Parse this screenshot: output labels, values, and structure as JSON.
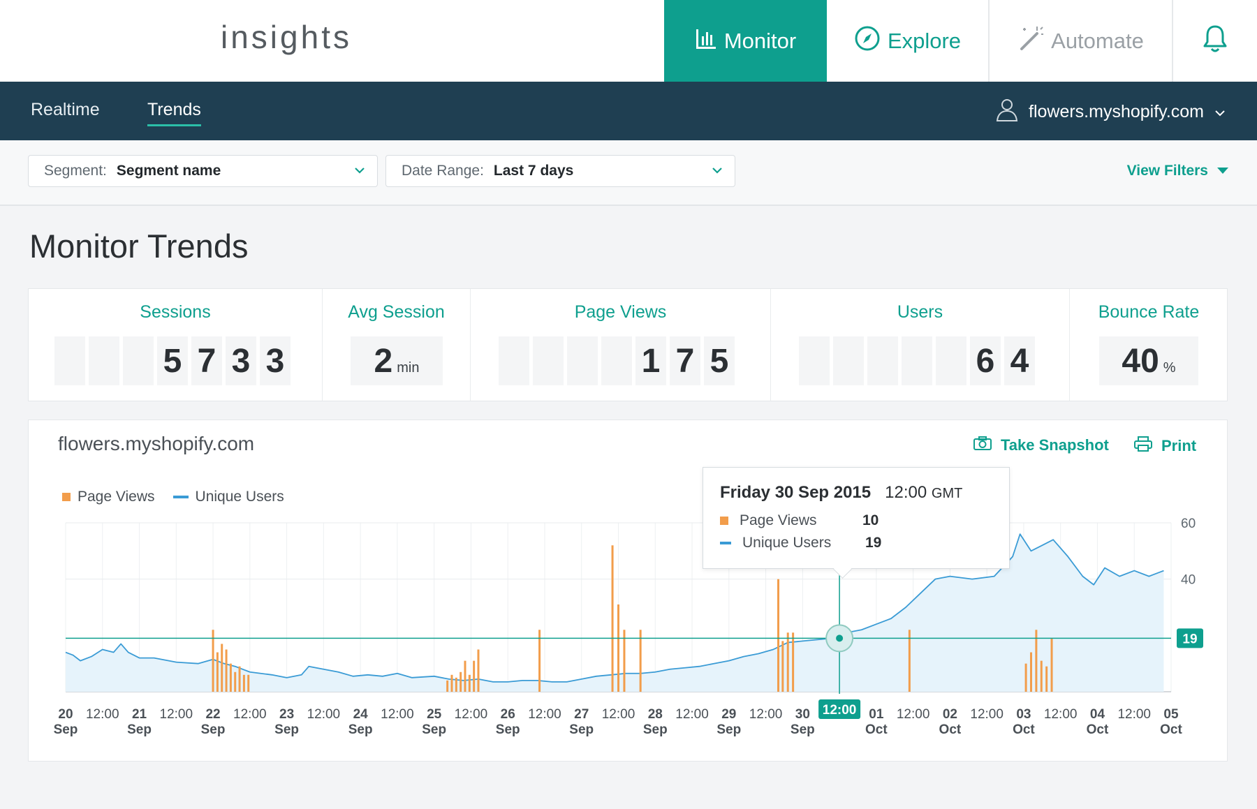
{
  "app": {
    "logo": "insights"
  },
  "nav": {
    "monitor": "Monitor",
    "explore": "Explore",
    "automate": "Automate"
  },
  "subnav": {
    "tabs": [
      "Realtime",
      "Trends"
    ],
    "active_tab": "Trends",
    "account": "flowers.myshopify.com"
  },
  "filters": {
    "segment_label": "Segment:",
    "segment_value": "Segment name",
    "date_label": "Date Range:",
    "date_value": "Last 7 days",
    "view_filters": "View Filters"
  },
  "page_title": "Monitor Trends",
  "metrics": {
    "sessions": {
      "title": "Sessions",
      "digits": [
        "",
        "",
        "",
        "5",
        "7",
        "3",
        "3"
      ]
    },
    "avg_session": {
      "title": "Avg Session",
      "value": "2",
      "unit": "min"
    },
    "page_views": {
      "title": "Page Views",
      "digits": [
        "",
        "",
        "",
        "",
        "1",
        "7",
        "5"
      ]
    },
    "users": {
      "title": "Users",
      "digits": [
        "",
        "",
        "",
        "",
        "",
        "6",
        "4"
      ]
    },
    "bounce_rate": {
      "title": "Bounce Rate",
      "value": "40",
      "unit": "%"
    }
  },
  "chart_card": {
    "title": "flowers.myshopify.com",
    "snapshot_label": "Take Snapshot",
    "print_label": "Print",
    "legend": {
      "page_views": "Page Views",
      "unique_users": "Unique Users"
    }
  },
  "tooltip": {
    "date": "Friday 30 Sep 2015",
    "time": "12:00",
    "tz": "GMT",
    "page_views_label": "Page Views",
    "page_views_value": "10",
    "unique_users_label": "Unique Users",
    "unique_users_value": "19"
  },
  "chart_data": {
    "type": "bar",
    "series": [
      {
        "name": "Page Views",
        "type": "bar",
        "color": "#f29d4b"
      },
      {
        "name": "Unique Users",
        "type": "area",
        "color": "#3a9bd5"
      }
    ],
    "y_ticks": [
      60,
      40
    ],
    "ylim": [
      0,
      60
    ],
    "crosshair": {
      "x_label": "12:00",
      "y_value": 19
    },
    "x_ticks": [
      [
        "20",
        "Sep"
      ],
      [
        "12:00",
        ""
      ],
      [
        "21",
        "Sep"
      ],
      [
        "12:00",
        ""
      ],
      [
        "22",
        "Sep"
      ],
      [
        "12:00",
        ""
      ],
      [
        "23",
        "Sep"
      ],
      [
        "12:00",
        ""
      ],
      [
        "24",
        "Sep"
      ],
      [
        "12:00",
        ""
      ],
      [
        "25",
        "Sep"
      ],
      [
        "12:00",
        ""
      ],
      [
        "26",
        "Sep"
      ],
      [
        "12:00",
        ""
      ],
      [
        "27",
        "Sep"
      ],
      [
        "12:00",
        ""
      ],
      [
        "28",
        "Sep"
      ],
      [
        "12:00",
        ""
      ],
      [
        "29",
        "Sep"
      ],
      [
        "12:00",
        ""
      ],
      [
        "30",
        "Sep"
      ],
      [
        "12:00",
        ""
      ],
      [
        "01",
        "Oct"
      ],
      [
        "12:00",
        ""
      ],
      [
        "02",
        "Oct"
      ],
      [
        "12:00",
        ""
      ],
      [
        "03",
        "Oct"
      ],
      [
        "12:00",
        ""
      ],
      [
        "04",
        "Oct"
      ],
      [
        "12:00",
        ""
      ],
      [
        "05",
        "Oct"
      ]
    ],
    "page_views_bars": [
      {
        "x": 2.0,
        "y": 22
      },
      {
        "x": 2.06,
        "y": 14
      },
      {
        "x": 2.12,
        "y": 17
      },
      {
        "x": 2.18,
        "y": 15
      },
      {
        "x": 2.24,
        "y": 10
      },
      {
        "x": 2.3,
        "y": 7
      },
      {
        "x": 2.36,
        "y": 9
      },
      {
        "x": 2.42,
        "y": 6
      },
      {
        "x": 2.48,
        "y": 6
      },
      {
        "x": 5.18,
        "y": 4
      },
      {
        "x": 5.24,
        "y": 6
      },
      {
        "x": 5.3,
        "y": 5
      },
      {
        "x": 5.36,
        "y": 7
      },
      {
        "x": 5.42,
        "y": 11
      },
      {
        "x": 5.48,
        "y": 6
      },
      {
        "x": 5.54,
        "y": 11
      },
      {
        "x": 5.6,
        "y": 15
      },
      {
        "x": 6.43,
        "y": 22
      },
      {
        "x": 7.42,
        "y": 52
      },
      {
        "x": 7.5,
        "y": 31
      },
      {
        "x": 7.58,
        "y": 22
      },
      {
        "x": 7.8,
        "y": 22
      },
      {
        "x": 9.67,
        "y": 40
      },
      {
        "x": 9.73,
        "y": 18
      },
      {
        "x": 9.8,
        "y": 21
      },
      {
        "x": 9.87,
        "y": 21
      },
      {
        "x": 11.45,
        "y": 22
      },
      {
        "x": 13.03,
        "y": 10
      },
      {
        "x": 13.1,
        "y": 14
      },
      {
        "x": 13.17,
        "y": 22
      },
      {
        "x": 13.24,
        "y": 11
      },
      {
        "x": 13.31,
        "y": 9
      },
      {
        "x": 13.38,
        "y": 19
      }
    ],
    "unique_users_points": [
      [
        0.0,
        14
      ],
      [
        0.1,
        13
      ],
      [
        0.2,
        11
      ],
      [
        0.35,
        12.5
      ],
      [
        0.5,
        15
      ],
      [
        0.65,
        14
      ],
      [
        0.75,
        17
      ],
      [
        0.85,
        14
      ],
      [
        1.0,
        12
      ],
      [
        1.2,
        12
      ],
      [
        1.5,
        10.5
      ],
      [
        1.8,
        10
      ],
      [
        2.0,
        11.5
      ],
      [
        2.15,
        10
      ],
      [
        2.3,
        9
      ],
      [
        2.5,
        7
      ],
      [
        2.8,
        6
      ],
      [
        3.0,
        5
      ],
      [
        3.2,
        6
      ],
      [
        3.3,
        9
      ],
      [
        3.5,
        8
      ],
      [
        3.7,
        7
      ],
      [
        3.9,
        5.5
      ],
      [
        4.1,
        6
      ],
      [
        4.3,
        5.5
      ],
      [
        4.5,
        6.5
      ],
      [
        4.7,
        5
      ],
      [
        5.0,
        5.5
      ],
      [
        5.2,
        4.5
      ],
      [
        5.4,
        4
      ],
      [
        5.6,
        4.5
      ],
      [
        5.8,
        3.5
      ],
      [
        6.0,
        3.5
      ],
      [
        6.2,
        4
      ],
      [
        6.4,
        4
      ],
      [
        6.6,
        3.5
      ],
      [
        6.8,
        3.5
      ],
      [
        7.0,
        4.5
      ],
      [
        7.2,
        5.5
      ],
      [
        7.4,
        6
      ],
      [
        7.6,
        6.5
      ],
      [
        7.8,
        6.5
      ],
      [
        8.0,
        7
      ],
      [
        8.2,
        8
      ],
      [
        8.4,
        8.5
      ],
      [
        8.6,
        9
      ],
      [
        8.8,
        10
      ],
      [
        9.0,
        11
      ],
      [
        9.2,
        12.5
      ],
      [
        9.4,
        13.5
      ],
      [
        9.6,
        15
      ],
      [
        9.8,
        17.5
      ],
      [
        10.0,
        18
      ],
      [
        10.2,
        18.5
      ],
      [
        10.4,
        19
      ],
      [
        10.6,
        21
      ],
      [
        10.8,
        22
      ],
      [
        11.0,
        24
      ],
      [
        11.2,
        26
      ],
      [
        11.4,
        30
      ],
      [
        11.6,
        35
      ],
      [
        11.8,
        40
      ],
      [
        12.0,
        41
      ],
      [
        12.3,
        40
      ],
      [
        12.6,
        41
      ],
      [
        12.85,
        48
      ],
      [
        12.95,
        56
      ],
      [
        13.1,
        50
      ],
      [
        13.25,
        52
      ],
      [
        13.4,
        54
      ],
      [
        13.6,
        48
      ],
      [
        13.8,
        41
      ],
      [
        13.95,
        38
      ],
      [
        14.1,
        44
      ],
      [
        14.3,
        41
      ],
      [
        14.5,
        43
      ],
      [
        14.7,
        41
      ],
      [
        14.9,
        43
      ]
    ]
  }
}
